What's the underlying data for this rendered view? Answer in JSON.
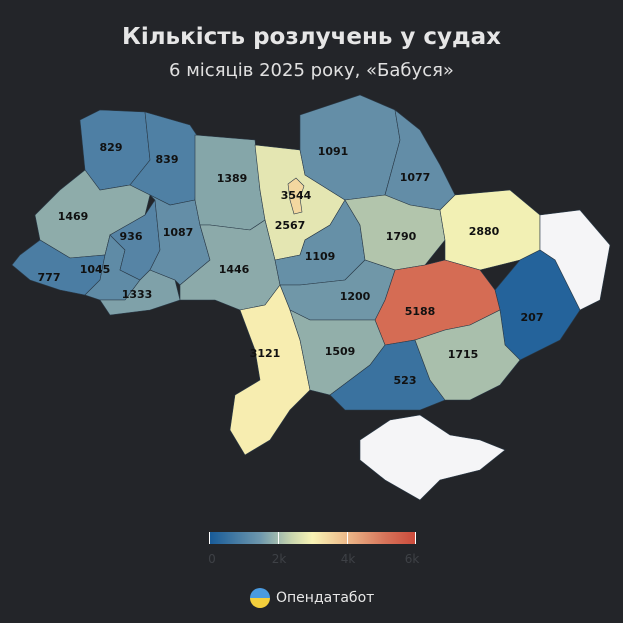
{
  "title": "Кількість розлучень у судах",
  "subtitle": "6 місяців 2025 року, «Бабуся»",
  "map": {
    "type": "choropleth",
    "no_data_color": "#f5f5f7",
    "regions": [
      {
        "name": "Volyn",
        "value": 829
      },
      {
        "name": "Rivne",
        "value": 839
      },
      {
        "name": "Lviv",
        "value": 1469
      },
      {
        "name": "Zakarpattia",
        "value": 777
      },
      {
        "name": "Ivano-Frankivsk",
        "value": 1045
      },
      {
        "name": "Ternopil",
        "value": 936
      },
      {
        "name": "Chernivtsi",
        "value": 1333
      },
      {
        "name": "Khmelnytskyi",
        "value": 1087
      },
      {
        "name": "Zhytomyr",
        "value": 1389
      },
      {
        "name": "Kyiv Oblast",
        "value": 2567
      },
      {
        "name": "Chernihiv",
        "value": 1091
      },
      {
        "name": "Sumy",
        "value": 1077
      },
      {
        "name": "Vinnytsia",
        "value": 1446
      },
      {
        "name": "Cherkasy",
        "value": 1109
      },
      {
        "name": "Poltava",
        "value": 1790
      },
      {
        "name": "Kharkiv",
        "value": 2880
      },
      {
        "name": "Luhansk",
        "value": null
      },
      {
        "name": "Donetsk",
        "value": 207
      },
      {
        "name": "Dnipropetrovsk",
        "value": 5188
      },
      {
        "name": "Kirovohrad",
        "value": 1200
      },
      {
        "name": "Odesa",
        "value": 3121
      },
      {
        "name": "Mykolaiv",
        "value": 1509
      },
      {
        "name": "Kherson",
        "value": 523
      },
      {
        "name": "Zaporizhzhia",
        "value": 1715
      },
      {
        "name": "Crimea",
        "value": null
      },
      {
        "name": "Kyiv City",
        "value": 3544
      }
    ]
  },
  "legend": {
    "ticks": [
      "0",
      "2k",
      "4k",
      "6k"
    ],
    "range": [
      0,
      6000
    ],
    "colors": [
      "#165a98",
      "#f8f3b5",
      "#cc4a3b"
    ]
  },
  "brand": "Опендатабот"
}
